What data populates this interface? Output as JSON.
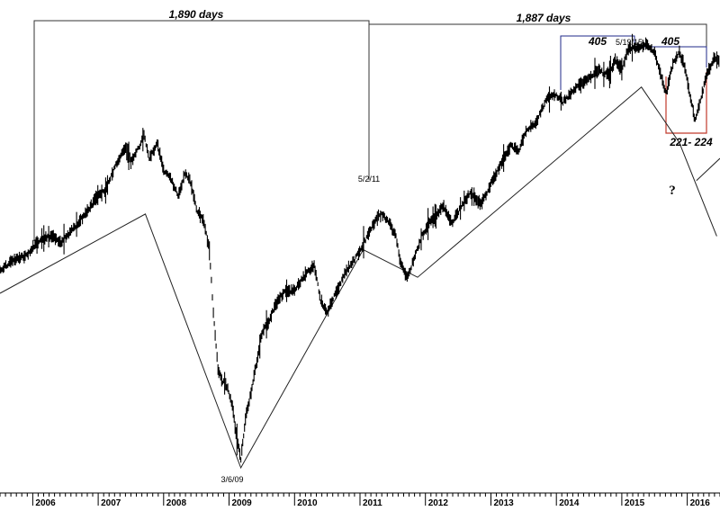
{
  "chart_data": {
    "type": "line",
    "title": "",
    "xlabel": "",
    "ylabel": "",
    "x_range": [
      2005.5,
      2016.5
    ],
    "y_range_relative": [
      0.0,
      1.0
    ],
    "x_tick_labels": [
      "2006",
      "2007",
      "2008",
      "2009",
      "2010",
      "2011",
      "2012",
      "2013",
      "2014",
      "2015",
      "2016"
    ],
    "x_tick_values": [
      2006,
      2007,
      2008,
      2009,
      2010,
      2011,
      2012,
      2013,
      2014,
      2015,
      2016
    ],
    "grid": false,
    "legend": "none",
    "series": [
      {
        "values": [
          [
            2005.5,
            0.452
          ],
          [
            2005.62,
            0.468
          ],
          [
            2005.75,
            0.478
          ],
          [
            2005.9,
            0.488
          ],
          [
            2006.05,
            0.512
          ],
          [
            2006.2,
            0.528
          ],
          [
            2006.33,
            0.53
          ],
          [
            2006.42,
            0.515
          ],
          [
            2006.55,
            0.535
          ],
          [
            2006.7,
            0.56
          ],
          [
            2006.85,
            0.59
          ],
          [
            2006.98,
            0.618
          ],
          [
            2007.1,
            0.632
          ],
          [
            2007.2,
            0.665
          ],
          [
            2007.3,
            0.7
          ],
          [
            2007.42,
            0.728
          ],
          [
            2007.5,
            0.698
          ],
          [
            2007.62,
            0.73
          ],
          [
            2007.7,
            0.755
          ],
          [
            2007.78,
            0.705
          ],
          [
            2007.9,
            0.738
          ],
          [
            2008.0,
            0.68
          ],
          [
            2008.12,
            0.655
          ],
          [
            2008.22,
            0.622
          ],
          [
            2008.32,
            0.668
          ],
          [
            2008.4,
            0.66
          ],
          [
            2008.5,
            0.592
          ],
          [
            2008.62,
            0.56
          ],
          [
            2008.7,
            0.498
          ],
          [
            2008.76,
            0.36
          ],
          [
            2008.83,
            0.23
          ],
          [
            2008.9,
            0.205
          ],
          [
            2008.98,
            0.188
          ],
          [
            2009.05,
            0.148
          ],
          [
            2009.12,
            0.075
          ],
          [
            2009.18,
            0.028
          ],
          [
            2009.25,
            0.12
          ],
          [
            2009.35,
            0.19
          ],
          [
            2009.5,
            0.31
          ],
          [
            2009.6,
            0.338
          ],
          [
            2009.72,
            0.38
          ],
          [
            2009.85,
            0.405
          ],
          [
            2010.0,
            0.41
          ],
          [
            2010.15,
            0.44
          ],
          [
            2010.3,
            0.466
          ],
          [
            2010.4,
            0.385
          ],
          [
            2010.5,
            0.36
          ],
          [
            2010.62,
            0.4
          ],
          [
            2010.78,
            0.448
          ],
          [
            2010.92,
            0.478
          ],
          [
            2011.1,
            0.526
          ],
          [
            2011.25,
            0.57
          ],
          [
            2011.33,
            0.58
          ],
          [
            2011.45,
            0.56
          ],
          [
            2011.55,
            0.53
          ],
          [
            2011.62,
            0.47
          ],
          [
            2011.72,
            0.435
          ],
          [
            2011.8,
            0.47
          ],
          [
            2011.95,
            0.532
          ],
          [
            2012.1,
            0.568
          ],
          [
            2012.28,
            0.598
          ],
          [
            2012.4,
            0.558
          ],
          [
            2012.52,
            0.59
          ],
          [
            2012.68,
            0.628
          ],
          [
            2012.85,
            0.602
          ],
          [
            2013.0,
            0.648
          ],
          [
            2013.15,
            0.692
          ],
          [
            2013.3,
            0.732
          ],
          [
            2013.42,
            0.722
          ],
          [
            2013.55,
            0.768
          ],
          [
            2013.7,
            0.788
          ],
          [
            2013.85,
            0.838
          ],
          [
            2014.0,
            0.848
          ],
          [
            2014.1,
            0.83
          ],
          [
            2014.25,
            0.858
          ],
          [
            2014.45,
            0.88
          ],
          [
            2014.65,
            0.902
          ],
          [
            2014.8,
            0.892
          ],
          [
            2014.9,
            0.925
          ],
          [
            2015.0,
            0.905
          ],
          [
            2015.1,
            0.952
          ],
          [
            2015.25,
            0.955
          ],
          [
            2015.38,
            0.96
          ],
          [
            2015.5,
            0.945
          ],
          [
            2015.62,
            0.878
          ],
          [
            2015.68,
            0.852
          ],
          [
            2015.78,
            0.918
          ],
          [
            2015.88,
            0.942
          ],
          [
            2015.95,
            0.915
          ],
          [
            2016.05,
            0.842
          ],
          [
            2016.12,
            0.79
          ],
          [
            2016.2,
            0.832
          ],
          [
            2016.3,
            0.895
          ],
          [
            2016.42,
            0.932
          ],
          [
            2016.5,
            0.918
          ]
        ]
      }
    ],
    "trendlines": [
      [
        [
          2005.5,
          0.402
        ],
        [
          2007.72,
          0.58
        ],
        [
          2009.18,
          0.01
        ],
        [
          2011.05,
          0.5
        ],
        [
          2011.88,
          0.438
        ],
        [
          2015.3,
          0.865
        ],
        [
          2015.88,
          0.74
        ],
        [
          2016.45,
          0.53
        ]
      ],
      [
        [
          2016.14,
          0.655
        ],
        [
          2016.5,
          0.705
        ]
      ]
    ],
    "annotations": {
      "count_left": "1,890 days",
      "count_right": "1,887 days",
      "count_405_left": "405",
      "count_405_right": "405",
      "range_label": "221- 224",
      "question_mark": "?",
      "date_2011": "5/2/11",
      "date_2015": "5/19/15",
      "date_2009": "3/6/09"
    },
    "colors": {
      "price": "#000000",
      "bracket_large": "#333333",
      "bracket_405": "#1f2a8a",
      "bracket_range": "#c0392b",
      "trendline": "#222222"
    }
  }
}
